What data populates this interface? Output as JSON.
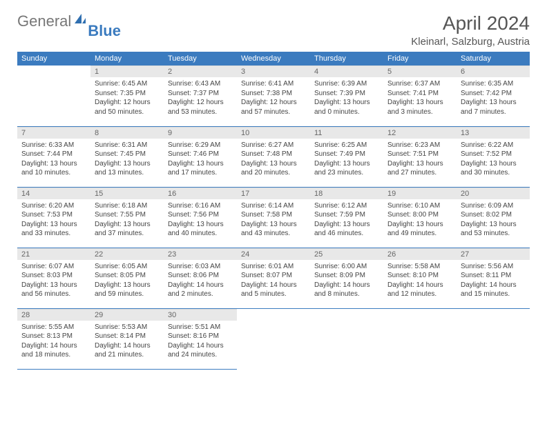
{
  "brand": {
    "part1": "General",
    "part2": "Blue"
  },
  "title": "April 2024",
  "location": "Kleinarl, Salzburg, Austria",
  "colors": {
    "header_bg": "#3b7bbf",
    "header_fg": "#ffffff",
    "daynum_bg": "#e8e8e8",
    "rule": "#3b7bbf",
    "text": "#444444",
    "title": "#555555"
  },
  "weekdays": [
    "Sunday",
    "Monday",
    "Tuesday",
    "Wednesday",
    "Thursday",
    "Friday",
    "Saturday"
  ],
  "weeks": [
    [
      null,
      {
        "n": "1",
        "sr": "Sunrise: 6:45 AM",
        "ss": "Sunset: 7:35 PM",
        "d1": "Daylight: 12 hours",
        "d2": "and 50 minutes."
      },
      {
        "n": "2",
        "sr": "Sunrise: 6:43 AM",
        "ss": "Sunset: 7:37 PM",
        "d1": "Daylight: 12 hours",
        "d2": "and 53 minutes."
      },
      {
        "n": "3",
        "sr": "Sunrise: 6:41 AM",
        "ss": "Sunset: 7:38 PM",
        "d1": "Daylight: 12 hours",
        "d2": "and 57 minutes."
      },
      {
        "n": "4",
        "sr": "Sunrise: 6:39 AM",
        "ss": "Sunset: 7:39 PM",
        "d1": "Daylight: 13 hours",
        "d2": "and 0 minutes."
      },
      {
        "n": "5",
        "sr": "Sunrise: 6:37 AM",
        "ss": "Sunset: 7:41 PM",
        "d1": "Daylight: 13 hours",
        "d2": "and 3 minutes."
      },
      {
        "n": "6",
        "sr": "Sunrise: 6:35 AM",
        "ss": "Sunset: 7:42 PM",
        "d1": "Daylight: 13 hours",
        "d2": "and 7 minutes."
      }
    ],
    [
      {
        "n": "7",
        "sr": "Sunrise: 6:33 AM",
        "ss": "Sunset: 7:44 PM",
        "d1": "Daylight: 13 hours",
        "d2": "and 10 minutes."
      },
      {
        "n": "8",
        "sr": "Sunrise: 6:31 AM",
        "ss": "Sunset: 7:45 PM",
        "d1": "Daylight: 13 hours",
        "d2": "and 13 minutes."
      },
      {
        "n": "9",
        "sr": "Sunrise: 6:29 AM",
        "ss": "Sunset: 7:46 PM",
        "d1": "Daylight: 13 hours",
        "d2": "and 17 minutes."
      },
      {
        "n": "10",
        "sr": "Sunrise: 6:27 AM",
        "ss": "Sunset: 7:48 PM",
        "d1": "Daylight: 13 hours",
        "d2": "and 20 minutes."
      },
      {
        "n": "11",
        "sr": "Sunrise: 6:25 AM",
        "ss": "Sunset: 7:49 PM",
        "d1": "Daylight: 13 hours",
        "d2": "and 23 minutes."
      },
      {
        "n": "12",
        "sr": "Sunrise: 6:23 AM",
        "ss": "Sunset: 7:51 PM",
        "d1": "Daylight: 13 hours",
        "d2": "and 27 minutes."
      },
      {
        "n": "13",
        "sr": "Sunrise: 6:22 AM",
        "ss": "Sunset: 7:52 PM",
        "d1": "Daylight: 13 hours",
        "d2": "and 30 minutes."
      }
    ],
    [
      {
        "n": "14",
        "sr": "Sunrise: 6:20 AM",
        "ss": "Sunset: 7:53 PM",
        "d1": "Daylight: 13 hours",
        "d2": "and 33 minutes."
      },
      {
        "n": "15",
        "sr": "Sunrise: 6:18 AM",
        "ss": "Sunset: 7:55 PM",
        "d1": "Daylight: 13 hours",
        "d2": "and 37 minutes."
      },
      {
        "n": "16",
        "sr": "Sunrise: 6:16 AM",
        "ss": "Sunset: 7:56 PM",
        "d1": "Daylight: 13 hours",
        "d2": "and 40 minutes."
      },
      {
        "n": "17",
        "sr": "Sunrise: 6:14 AM",
        "ss": "Sunset: 7:58 PM",
        "d1": "Daylight: 13 hours",
        "d2": "and 43 minutes."
      },
      {
        "n": "18",
        "sr": "Sunrise: 6:12 AM",
        "ss": "Sunset: 7:59 PM",
        "d1": "Daylight: 13 hours",
        "d2": "and 46 minutes."
      },
      {
        "n": "19",
        "sr": "Sunrise: 6:10 AM",
        "ss": "Sunset: 8:00 PM",
        "d1": "Daylight: 13 hours",
        "d2": "and 49 minutes."
      },
      {
        "n": "20",
        "sr": "Sunrise: 6:09 AM",
        "ss": "Sunset: 8:02 PM",
        "d1": "Daylight: 13 hours",
        "d2": "and 53 minutes."
      }
    ],
    [
      {
        "n": "21",
        "sr": "Sunrise: 6:07 AM",
        "ss": "Sunset: 8:03 PM",
        "d1": "Daylight: 13 hours",
        "d2": "and 56 minutes."
      },
      {
        "n": "22",
        "sr": "Sunrise: 6:05 AM",
        "ss": "Sunset: 8:05 PM",
        "d1": "Daylight: 13 hours",
        "d2": "and 59 minutes."
      },
      {
        "n": "23",
        "sr": "Sunrise: 6:03 AM",
        "ss": "Sunset: 8:06 PM",
        "d1": "Daylight: 14 hours",
        "d2": "and 2 minutes."
      },
      {
        "n": "24",
        "sr": "Sunrise: 6:01 AM",
        "ss": "Sunset: 8:07 PM",
        "d1": "Daylight: 14 hours",
        "d2": "and 5 minutes."
      },
      {
        "n": "25",
        "sr": "Sunrise: 6:00 AM",
        "ss": "Sunset: 8:09 PM",
        "d1": "Daylight: 14 hours",
        "d2": "and 8 minutes."
      },
      {
        "n": "26",
        "sr": "Sunrise: 5:58 AM",
        "ss": "Sunset: 8:10 PM",
        "d1": "Daylight: 14 hours",
        "d2": "and 12 minutes."
      },
      {
        "n": "27",
        "sr": "Sunrise: 5:56 AM",
        "ss": "Sunset: 8:11 PM",
        "d1": "Daylight: 14 hours",
        "d2": "and 15 minutes."
      }
    ],
    [
      {
        "n": "28",
        "sr": "Sunrise: 5:55 AM",
        "ss": "Sunset: 8:13 PM",
        "d1": "Daylight: 14 hours",
        "d2": "and 18 minutes."
      },
      {
        "n": "29",
        "sr": "Sunrise: 5:53 AM",
        "ss": "Sunset: 8:14 PM",
        "d1": "Daylight: 14 hours",
        "d2": "and 21 minutes."
      },
      {
        "n": "30",
        "sr": "Sunrise: 5:51 AM",
        "ss": "Sunset: 8:16 PM",
        "d1": "Daylight: 14 hours",
        "d2": "and 24 minutes."
      },
      null,
      null,
      null,
      null
    ]
  ]
}
